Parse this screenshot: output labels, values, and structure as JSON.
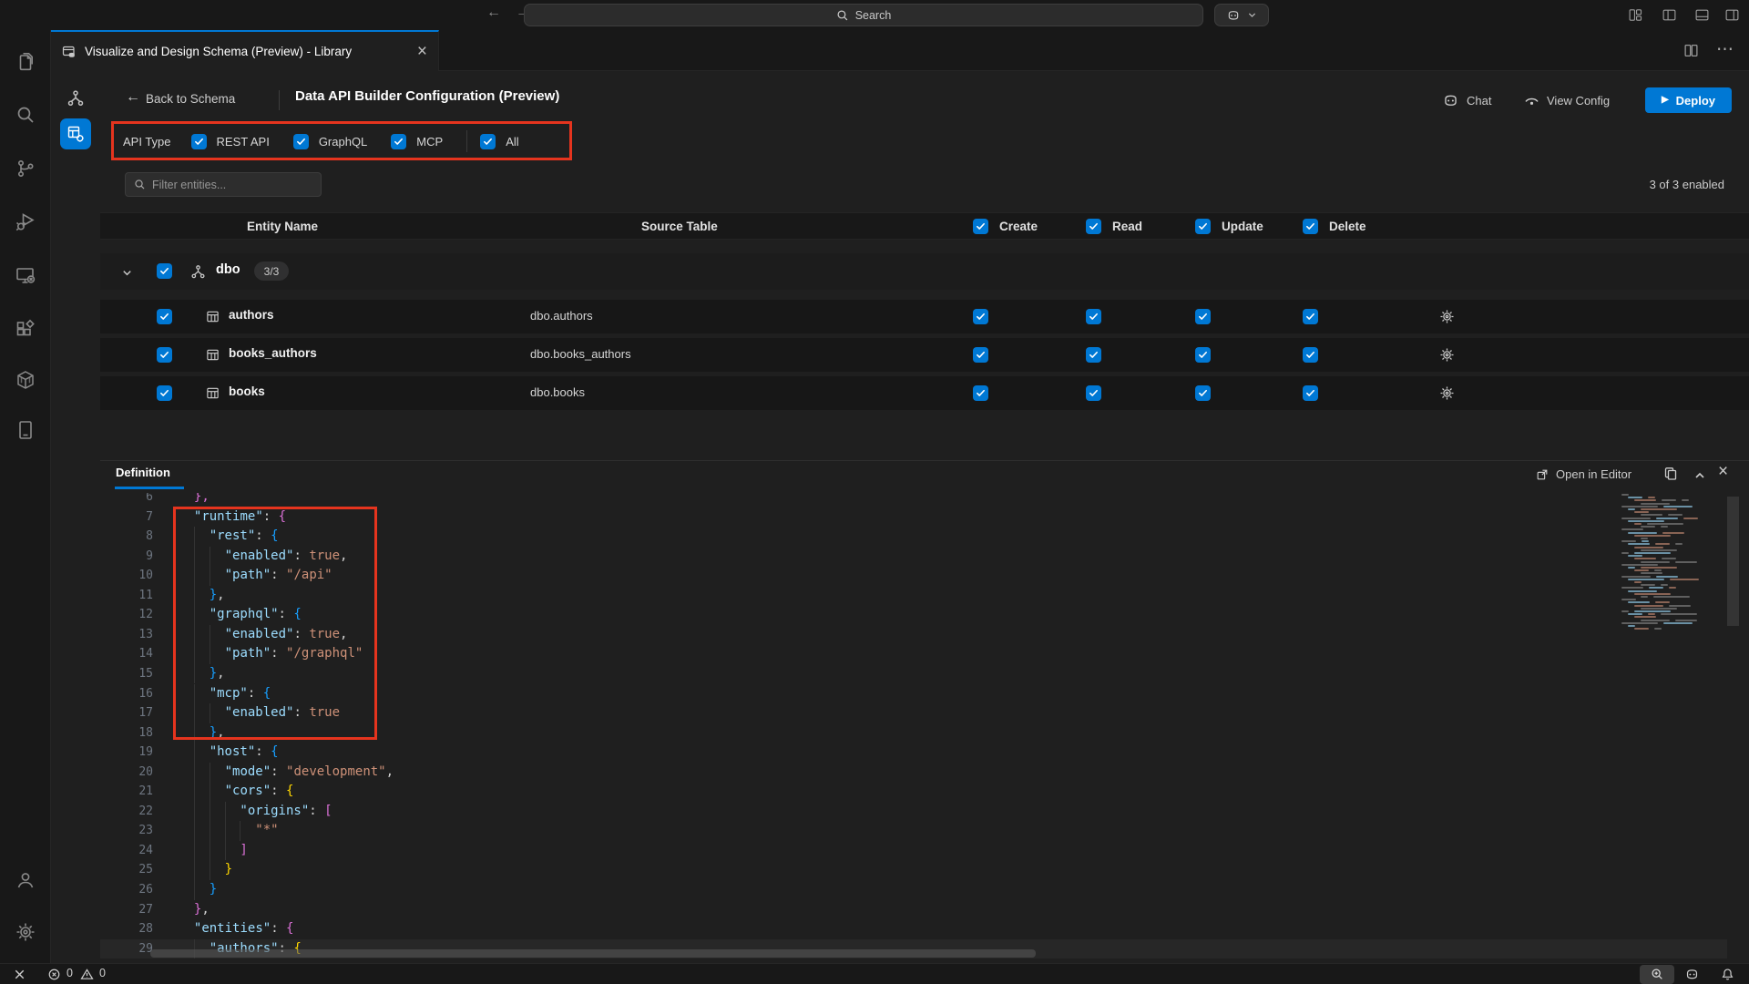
{
  "titlebar": {
    "search_label": "Search"
  },
  "tabbar": {
    "tab_title": "Visualize and Design Schema (Preview) - Library"
  },
  "header": {
    "back_label": "Back to Schema",
    "title": "Data API Builder Configuration (Preview)",
    "chat_label": "Chat",
    "view_config_label": "View Config",
    "deploy_label": "Deploy"
  },
  "api_type": {
    "label": "API Type",
    "rest_label": "REST API",
    "graphql_label": "GraphQL",
    "mcp_label": "MCP",
    "all_label": "All",
    "rest_checked": true,
    "graphql_checked": true,
    "mcp_checked": true,
    "all_checked": true
  },
  "filter": {
    "placeholder": "Filter entities...",
    "summary": "3 of 3 enabled"
  },
  "table": {
    "col_entity": "Entity Name",
    "col_source": "Source Table",
    "col_create": "Create",
    "col_read": "Read",
    "col_update": "Update",
    "col_delete": "Delete",
    "group": {
      "name": "dbo",
      "badge": "3/3",
      "checked": true
    },
    "rows": [
      {
        "name": "authors",
        "source": "dbo.authors",
        "create": true,
        "read": true,
        "update": true,
        "delete": true
      },
      {
        "name": "books_authors",
        "source": "dbo.books_authors",
        "create": true,
        "read": true,
        "update": true,
        "delete": true
      },
      {
        "name": "books",
        "source": "dbo.books",
        "create": true,
        "read": true,
        "update": true,
        "delete": true
      }
    ]
  },
  "definition": {
    "tab_label": "Definition",
    "open_in_editor_label": "Open in Editor"
  },
  "code": {
    "lines": [
      {
        "n": 6,
        "i": 2,
        "t": [
          [
            "},",
            "bp-split"
          ]
        ]
      },
      {
        "n": 7,
        "i": 2,
        "t": [
          [
            "\"runtime\"",
            "key"
          ],
          [
            ": ",
            "punc"
          ],
          [
            "{",
            "bp"
          ]
        ]
      },
      {
        "n": 8,
        "i": 4,
        "t": [
          [
            "\"rest\"",
            "key"
          ],
          [
            ": ",
            "punc"
          ],
          [
            "{",
            "bb"
          ]
        ]
      },
      {
        "n": 9,
        "i": 6,
        "t": [
          [
            "\"enabled\"",
            "key"
          ],
          [
            ": ",
            "punc"
          ],
          [
            "true",
            "str"
          ],
          [
            ",",
            "punc"
          ]
        ]
      },
      {
        "n": 10,
        "i": 6,
        "t": [
          [
            "\"path\"",
            "key"
          ],
          [
            ": ",
            "punc"
          ],
          [
            "\"/api\"",
            "str"
          ]
        ]
      },
      {
        "n": 11,
        "i": 4,
        "t": [
          [
            "}",
            "bb"
          ],
          [
            ",",
            "punc"
          ]
        ]
      },
      {
        "n": 12,
        "i": 4,
        "t": [
          [
            "\"graphql\"",
            "key"
          ],
          [
            ": ",
            "punc"
          ],
          [
            "{",
            "bb"
          ]
        ]
      },
      {
        "n": 13,
        "i": 6,
        "t": [
          [
            "\"enabled\"",
            "key"
          ],
          [
            ": ",
            "punc"
          ],
          [
            "true",
            "str"
          ],
          [
            ",",
            "punc"
          ]
        ]
      },
      {
        "n": 14,
        "i": 6,
        "t": [
          [
            "\"path\"",
            "key"
          ],
          [
            ": ",
            "punc"
          ],
          [
            "\"/graphql\"",
            "str"
          ]
        ]
      },
      {
        "n": 15,
        "i": 4,
        "t": [
          [
            "}",
            "bb"
          ],
          [
            ",",
            "punc"
          ]
        ]
      },
      {
        "n": 16,
        "i": 4,
        "t": [
          [
            "\"mcp\"",
            "key"
          ],
          [
            ": ",
            "punc"
          ],
          [
            "{",
            "bb"
          ]
        ]
      },
      {
        "n": 17,
        "i": 6,
        "t": [
          [
            "\"enabled\"",
            "key"
          ],
          [
            ": ",
            "punc"
          ],
          [
            "true",
            "str"
          ]
        ]
      },
      {
        "n": 18,
        "i": 4,
        "t": [
          [
            "}",
            "bb"
          ],
          [
            ",",
            "punc"
          ]
        ]
      },
      {
        "n": 19,
        "i": 4,
        "t": [
          [
            "\"host\"",
            "key"
          ],
          [
            ": ",
            "punc"
          ],
          [
            "{",
            "bb"
          ]
        ]
      },
      {
        "n": 20,
        "i": 6,
        "t": [
          [
            "\"mode\"",
            "key"
          ],
          [
            ": ",
            "punc"
          ],
          [
            "\"development\"",
            "str"
          ],
          [
            ",",
            "punc"
          ]
        ]
      },
      {
        "n": 21,
        "i": 6,
        "t": [
          [
            "\"cors\"",
            "key"
          ],
          [
            ": ",
            "punc"
          ],
          [
            "{",
            "by"
          ]
        ]
      },
      {
        "n": 22,
        "i": 8,
        "t": [
          [
            "\"origins\"",
            "key"
          ],
          [
            ": ",
            "punc"
          ],
          [
            "[",
            "bp"
          ]
        ]
      },
      {
        "n": 23,
        "i": 10,
        "t": [
          [
            "\"*\"",
            "str"
          ]
        ]
      },
      {
        "n": 24,
        "i": 8,
        "t": [
          [
            "]",
            "bp"
          ]
        ]
      },
      {
        "n": 25,
        "i": 6,
        "t": [
          [
            "}",
            "by"
          ]
        ]
      },
      {
        "n": 26,
        "i": 4,
        "t": [
          [
            "}",
            "bb"
          ]
        ]
      },
      {
        "n": 27,
        "i": 2,
        "t": [
          [
            "}",
            "bp"
          ],
          [
            ",",
            "punc"
          ]
        ]
      },
      {
        "n": 28,
        "i": 2,
        "t": [
          [
            "\"entities\"",
            "key"
          ],
          [
            ": ",
            "punc"
          ],
          [
            "{",
            "bp"
          ]
        ]
      },
      {
        "n": 29,
        "i": 4,
        "t": [
          [
            "\"authors\"",
            "key"
          ],
          [
            ": ",
            "punc"
          ],
          [
            "{",
            "by"
          ]
        ]
      }
    ]
  },
  "status": {
    "errors": "0",
    "warnings": "0"
  },
  "colors": {
    "accent": "#0078d4",
    "annotation_red": "#e5341e",
    "code_key": "#9cdcfe",
    "code_string": "#ce9178",
    "brace_gold": "#ffd700",
    "brace_pink": "#da70d6",
    "brace_blue": "#179fff"
  }
}
